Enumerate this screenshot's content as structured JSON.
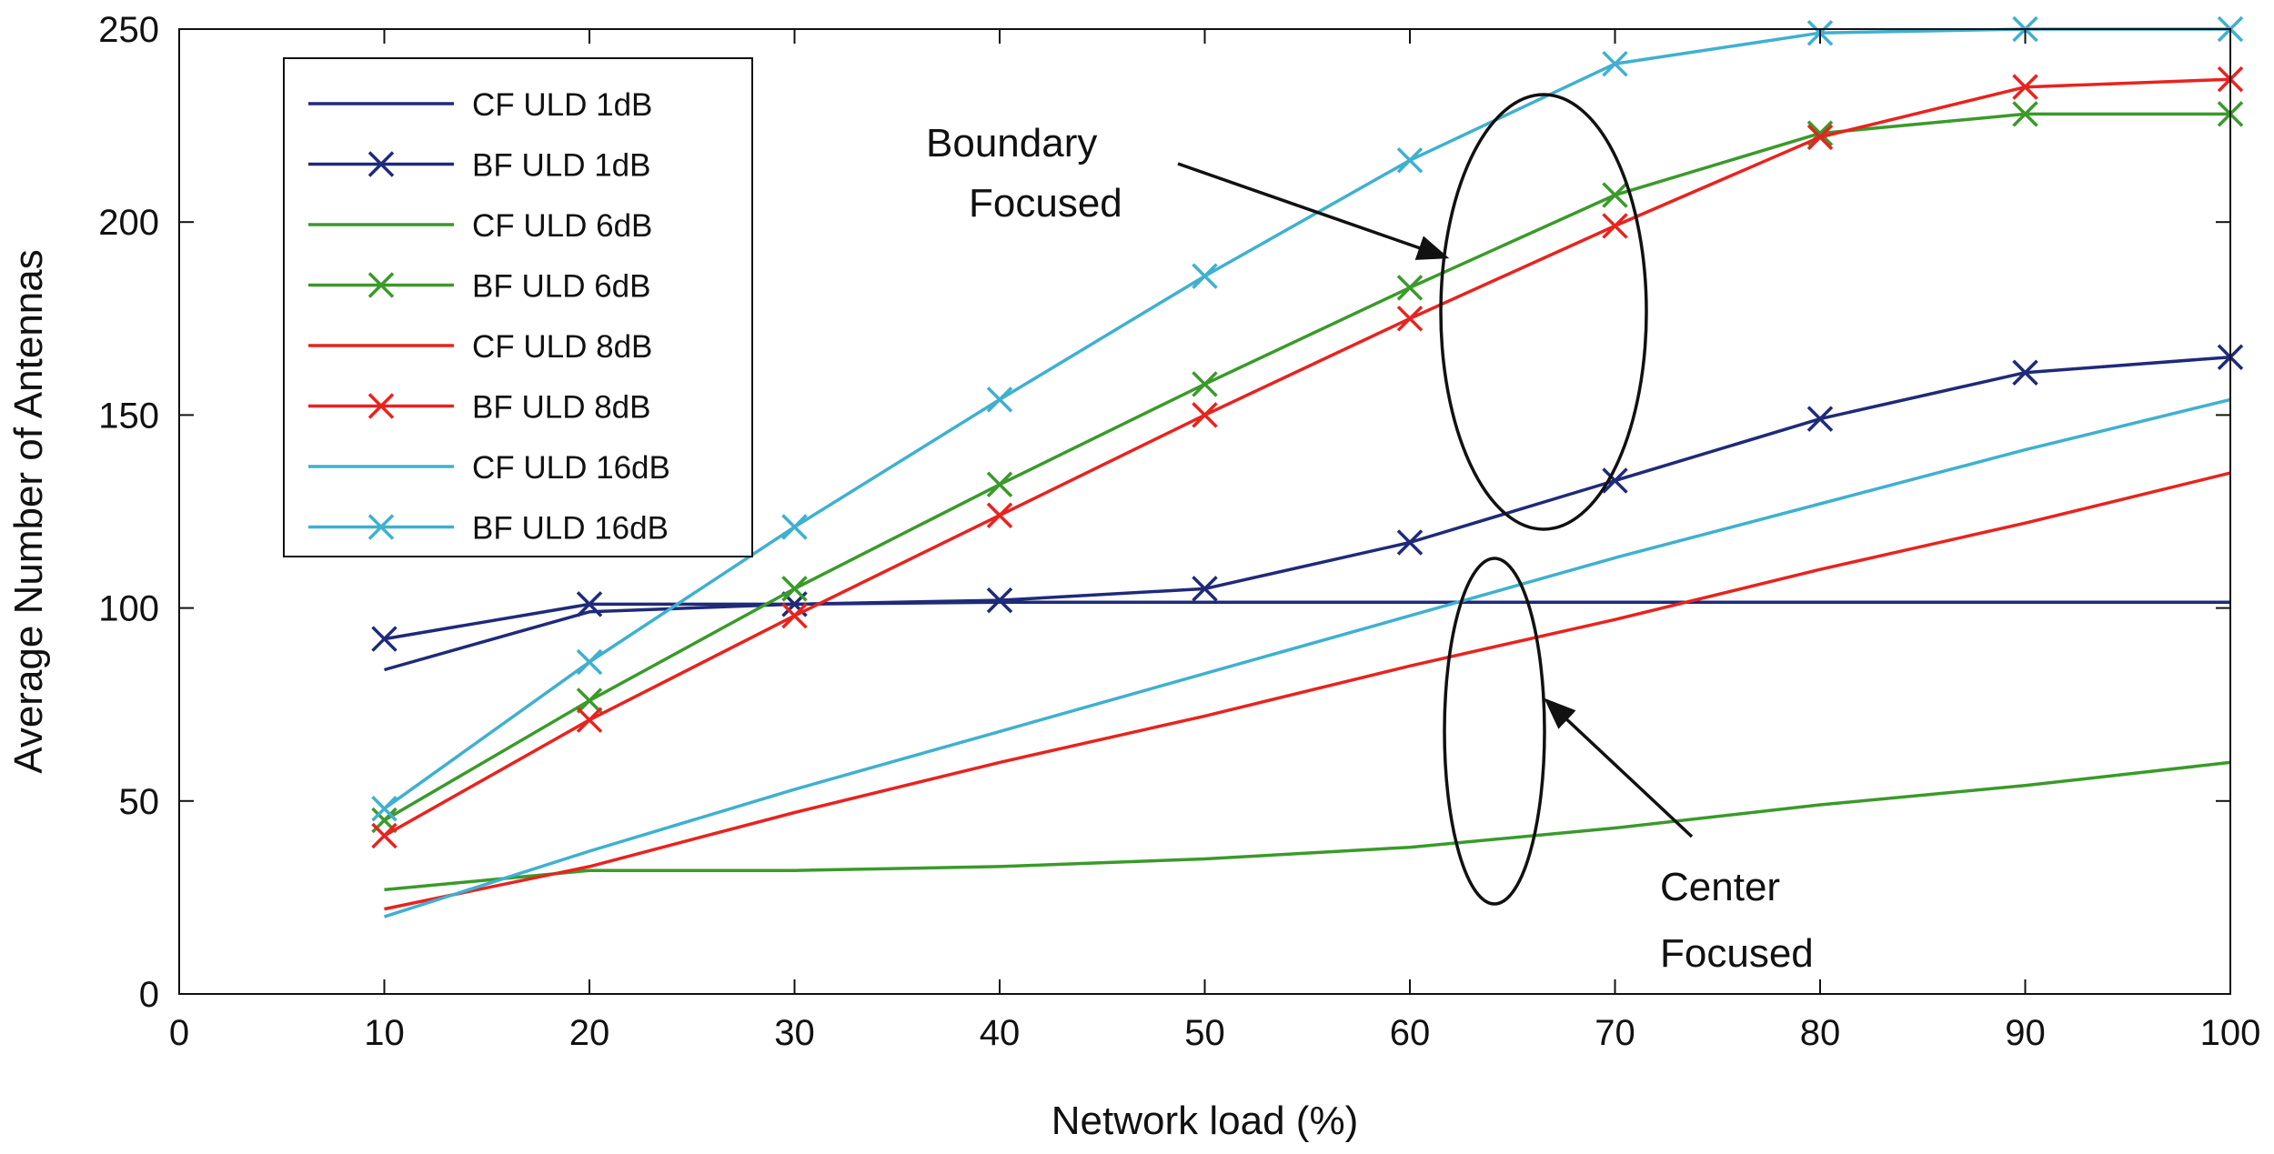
{
  "chart_data": {
    "type": "line",
    "title": "",
    "xlabel": "Network load (%)",
    "ylabel": "Average Number of Antennas",
    "xlim": [
      0,
      100
    ],
    "ylim": [
      0,
      250
    ],
    "xticks": [
      0,
      10,
      20,
      30,
      40,
      50,
      60,
      70,
      80,
      90,
      100
    ],
    "yticks": [
      0,
      50,
      100,
      150,
      200,
      250
    ],
    "x": [
      10,
      20,
      30,
      40,
      50,
      60,
      70,
      80,
      90,
      100
    ],
    "grid": false,
    "legend_position": "top-left",
    "series": [
      {
        "name": "CF ULD 1dB",
        "color": "#1f2a7a",
        "marker": "none",
        "values": [
          84,
          99,
          101,
          101.5,
          101.5,
          101.5,
          101.5,
          101.5,
          101.5,
          101.5
        ]
      },
      {
        "name": "BF ULD 1dB",
        "color": "#1f2a7a",
        "marker": "x",
        "values": [
          92,
          101,
          101,
          102,
          105,
          117,
          133,
          149,
          161,
          165
        ]
      },
      {
        "name": "CF ULD 6dB",
        "color": "#3a9a2a",
        "marker": "none",
        "values": [
          27,
          32,
          32,
          33,
          35,
          38,
          43,
          49,
          54,
          60
        ]
      },
      {
        "name": "BF ULD 6dB",
        "color": "#3a9a2a",
        "marker": "x",
        "values": [
          45,
          76,
          105,
          132,
          158,
          183,
          207,
          223,
          228,
          228
        ]
      },
      {
        "name": "CF ULD 8dB",
        "color": "#e8231e",
        "marker": "none",
        "values": [
          22,
          33,
          47,
          60,
          72,
          85,
          97,
          110,
          122,
          135
        ]
      },
      {
        "name": "BF ULD 8dB",
        "color": "#e8231e",
        "marker": "x",
        "values": [
          41,
          71,
          98,
          124,
          150,
          175,
          199,
          222,
          235,
          237
        ]
      },
      {
        "name": "CF ULD 16dB",
        "color": "#3fb0d0",
        "marker": "none",
        "values": [
          20,
          37,
          53,
          68,
          83,
          98,
          113,
          127,
          141,
          154
        ]
      },
      {
        "name": "BF ULD 16dB",
        "color": "#3fb0d0",
        "marker": "x",
        "values": [
          48,
          86,
          121,
          154,
          186,
          216,
          241,
          249,
          250,
          250
        ]
      }
    ],
    "annotations": [
      {
        "lines": [
          "Boundary",
          "Focused"
        ]
      },
      {
        "lines": [
          "Center",
          "Focused"
        ]
      }
    ]
  }
}
